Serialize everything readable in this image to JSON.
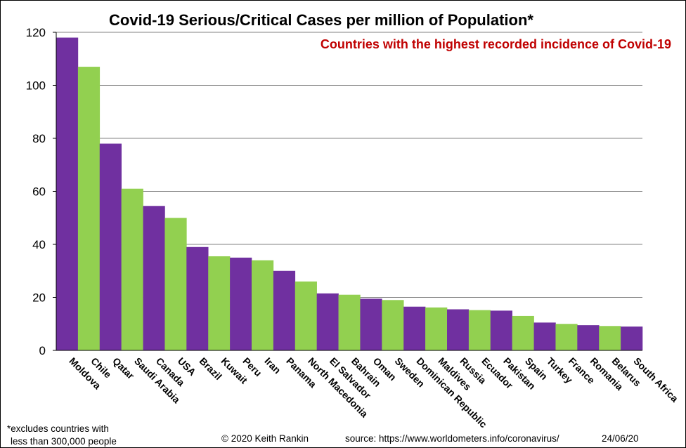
{
  "colors": {
    "purple": "#7030a0",
    "green": "#92d050",
    "subtitle": "#c00000",
    "grid": "#808080"
  },
  "footer": {
    "note_line1": "*excludes  countries with",
    "note_line2": "less than 300,000 people",
    "copyright": "© 2020  Keith Rankin",
    "source": "source: https://www.worldometers.info/coronavirus/",
    "date": "24/06/20"
  },
  "chart_data": {
    "type": "bar",
    "title": "Covid-19 Serious/Critical Cases per million of Population*",
    "subtitle": "Countries with the highest recorded incidence of Covid-19",
    "xlabel": "",
    "ylabel": "",
    "ylim": [
      0,
      120
    ],
    "yticks": [
      0,
      20,
      40,
      60,
      80,
      100,
      120
    ],
    "grid": true,
    "bar_colors": "alternating purple/green",
    "categories": [
      "Moldova",
      "Chile",
      "Qatar",
      "Saudi Arabia",
      "Canada",
      "USA",
      "Brazil",
      "Kuwait",
      "Peru",
      "Iran",
      "Panama",
      "North Macedonia",
      "El Salvador",
      "Bahrain",
      "Oman",
      "Sweden",
      "Dominican Republic",
      "Maldives",
      "Russia",
      "Ecuador",
      "Pakistan",
      "Spain",
      "Turkey",
      "France",
      "Romania",
      "Belarus",
      "South Africa"
    ],
    "values": [
      118,
      107,
      78,
      61,
      54.5,
      50,
      39,
      35.5,
      35,
      34,
      30,
      26,
      21.5,
      21,
      19.5,
      19,
      16.5,
      16.2,
      15.5,
      15.2,
      15,
      13,
      10.5,
      10,
      9.5,
      9.2,
      9
    ]
  }
}
